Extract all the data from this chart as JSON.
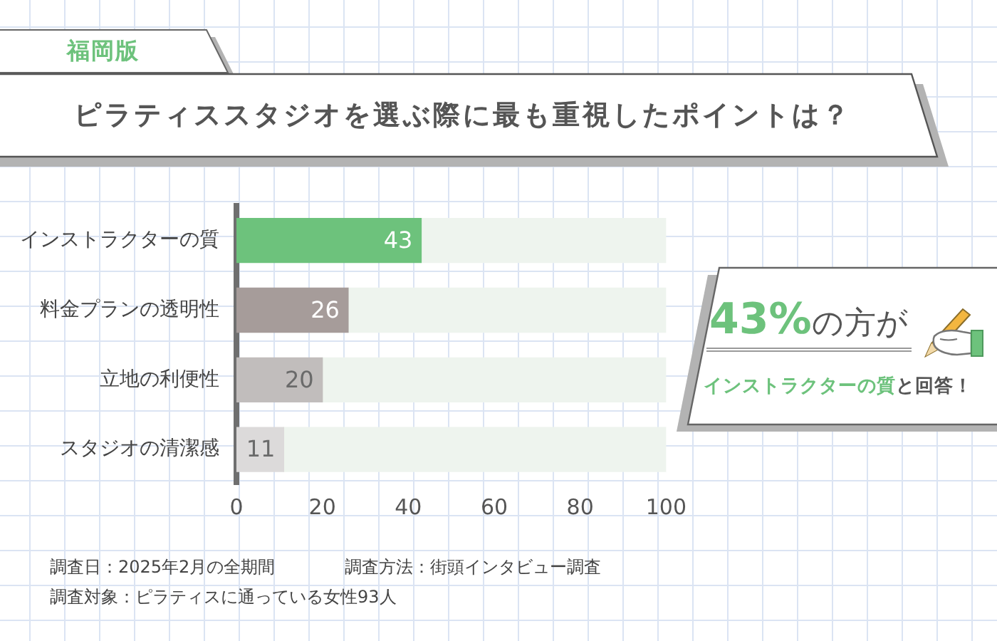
{
  "chart_data": {
    "type": "bar",
    "orientation": "horizontal",
    "stacked": true,
    "title": "ピラティススタジオを選ぶ際に最も重視したポイントは？",
    "subtitle": "福岡版",
    "categories": [
      "インストラクターの質",
      "料金プランの透明性",
      "立地の利便性",
      "スタジオの清潔感"
    ],
    "series": [
      {
        "colors": [
          "#6dc27c",
          "#a69c9a",
          "#c1bdbc",
          "#dcdada"
        ],
        "values": [
          43,
          26,
          20,
          11
        ],
        "value_labels": [
          "43",
          "26",
          "20",
          "11"
        ]
      },
      {
        "color": "#eef4ee",
        "values": [
          57,
          74,
          80,
          89
        ]
      }
    ],
    "xlim": [
      0,
      100
    ],
    "xticks": [
      0,
      20,
      40,
      60,
      80,
      100
    ],
    "annotations": [
      "43%の方が",
      "インストラクターの質と回答！",
      "調査日：2025年2月の全期間",
      "調査方法：街頭インタビュー調査",
      "調査対象：ピラティスに通っている女性93人"
    ]
  }
}
